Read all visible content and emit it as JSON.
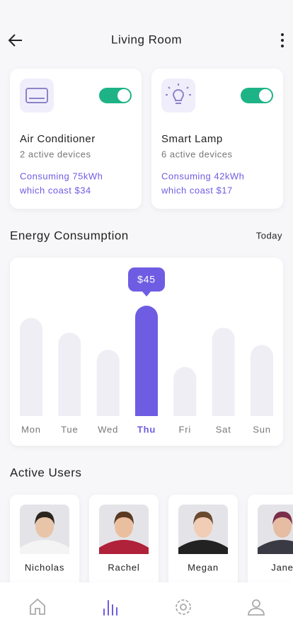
{
  "header": {
    "title": "Living Room"
  },
  "devices": [
    {
      "name": "Air Conditioner",
      "count": "2 active devices",
      "consumption": "Consuming 75kWh",
      "cost": "which coast $34"
    },
    {
      "name": "Smart Lamp",
      "count": "6 active devices",
      "consumption": "Consuming 42kWh",
      "cost": "which coast $17"
    }
  ],
  "chart_data": {
    "type": "bar",
    "title": "Energy Consumption",
    "period": "Today",
    "categories": [
      "Mon",
      "Tue",
      "Wed",
      "Thu",
      "Fri",
      "Sat",
      "Sun"
    ],
    "values": [
      40,
      34,
      27,
      45,
      20,
      36,
      29
    ],
    "value_labels": [
      null,
      null,
      null,
      "$45",
      null,
      null,
      null
    ],
    "color": "#efeef5",
    "highlight_color": "#6e5de3"
  },
  "users": {
    "title": "Active Users",
    "names": [
      "Nicholas",
      "Rachel",
      "Megan",
      "Jane"
    ]
  }
}
